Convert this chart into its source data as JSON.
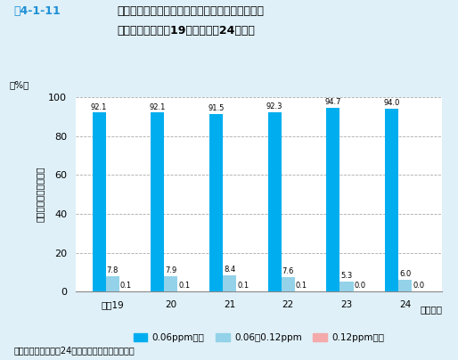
{
  "title_prefix": "図4-1-11",
  "title_main": "昼間の光化学オキシダント濃度レベル別測定時間",
  "title_sub": "割合の推移（平成19年度〜平成24年度）",
  "ylabel_unit": "（%）",
  "ylabel_text": "濃度別測定時間の割合",
  "xlabel_suffix": "（年度）",
  "categories": [
    "平成19",
    "20",
    "21",
    "22",
    "23",
    "24"
  ],
  "series": [
    {
      "name": "0.06ppm以下",
      "values": [
        92.1,
        92.1,
        91.5,
        92.3,
        94.7,
        94.0
      ],
      "color": "#00AEEF"
    },
    {
      "name": "0.06〜0.12ppm",
      "values": [
        7.8,
        7.9,
        8.4,
        7.6,
        5.3,
        6.0
      ],
      "color": "#93D2E8"
    },
    {
      "name": "0.12ppm以上",
      "values": [
        0.1,
        0.1,
        0.1,
        0.1,
        0.0,
        0.0
      ],
      "color": "#F4AAAA"
    }
  ],
  "ylim": [
    0,
    100
  ],
  "yticks": [
    0,
    20,
    40,
    60,
    80,
    100
  ],
  "background_color": "#DFF0F8",
  "plot_bg_color": "#FFFFFF",
  "grid_color": "#AAAAAA",
  "source_text": "資料：環境省「平成24年度大気汚染状況報告書」",
  "bar_width": 0.23
}
